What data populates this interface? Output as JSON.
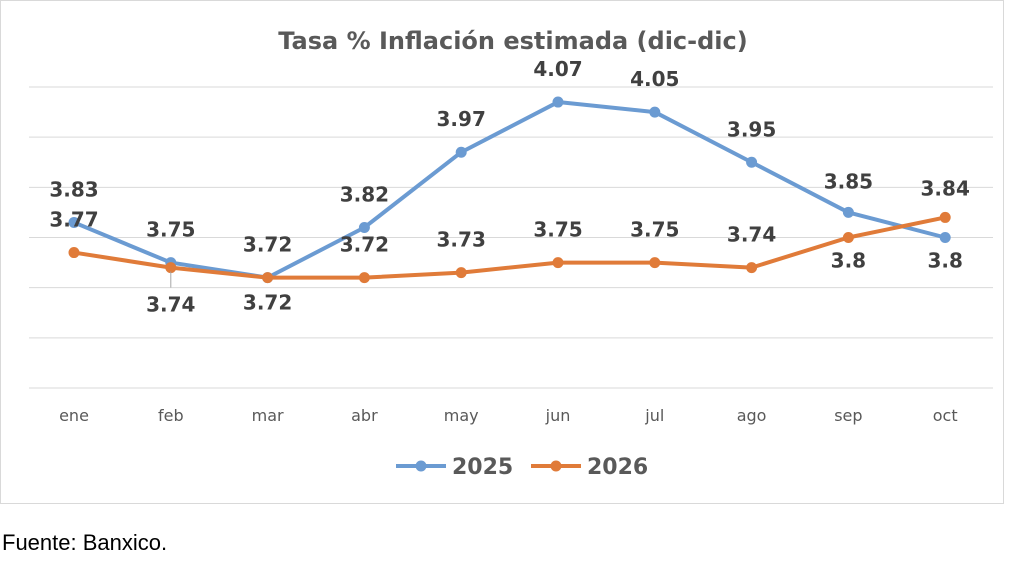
{
  "chart_data": {
    "type": "line",
    "title": "Tasa % Inflación estimada (dic-dic)",
    "categories": [
      "ene",
      "feb",
      "mar",
      "abr",
      "may",
      "jun",
      "jul",
      "ago",
      "sep",
      "oct"
    ],
    "series": [
      {
        "name": "2025",
        "color": "#6b9bd2",
        "values": [
          3.83,
          3.75,
          3.72,
          3.82,
          3.97,
          4.07,
          4.05,
          3.95,
          3.85,
          3.8
        ]
      },
      {
        "name": "2026",
        "color": "#e07b39",
        "values": [
          3.77,
          3.74,
          3.72,
          3.72,
          3.73,
          3.75,
          3.75,
          3.74,
          3.8,
          3.84
        ]
      }
    ],
    "ylim": [
      3.5,
      4.1
    ],
    "grid": true,
    "legend": "bottom",
    "xlabel": "",
    "ylabel": ""
  },
  "source": "Fuente: Banxico."
}
